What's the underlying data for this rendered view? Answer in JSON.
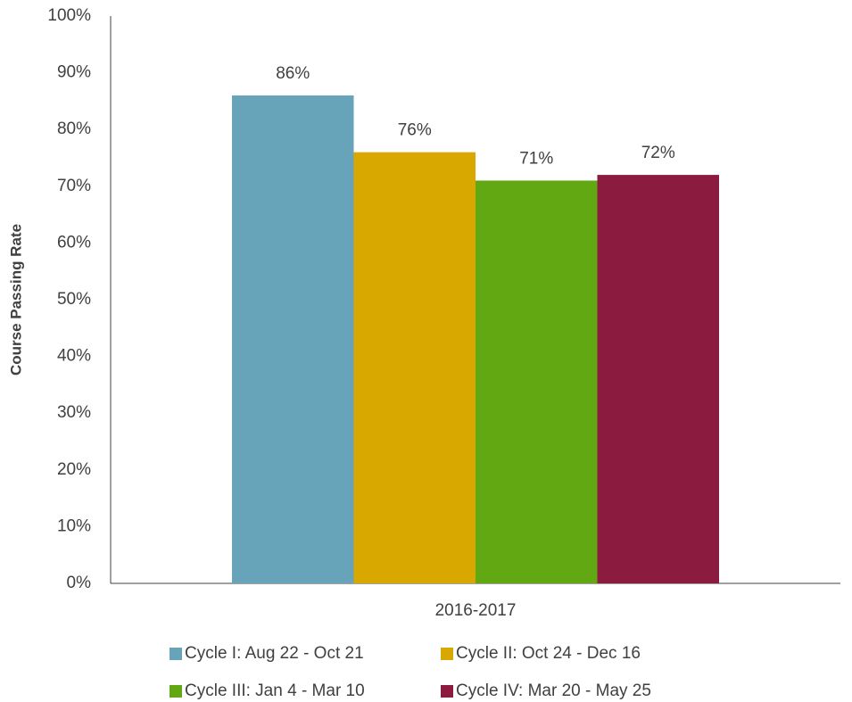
{
  "chart_data": {
    "type": "bar",
    "ylabel": "Course Passing Rate",
    "categories": [
      "2016-2017"
    ],
    "series": [
      {
        "name": "Cycle I: Aug 22 - Oct 21",
        "color": "#67a3b9",
        "values": [
          86
        ],
        "value_labels": [
          "86%"
        ]
      },
      {
        "name": "Cycle II: Oct 24 - Dec 16",
        "color": "#d9a800",
        "values": [
          76
        ],
        "value_labels": [
          "76%"
        ]
      },
      {
        "name": "Cycle III: Jan 4 - Mar 10",
        "color": "#62a813",
        "values": [
          71
        ],
        "value_labels": [
          "71%"
        ]
      },
      {
        "name": "Cycle IV: Mar 20 - May 25",
        "color": "#8b1c40",
        "values": [
          72
        ],
        "value_labels": [
          "72%"
        ]
      }
    ],
    "ylim": [
      0,
      100
    ],
    "yticks": [
      {
        "value": 0,
        "label": "0%"
      },
      {
        "value": 10,
        "label": "10%"
      },
      {
        "value": 20,
        "label": "20%"
      },
      {
        "value": 30,
        "label": "30%"
      },
      {
        "value": 40,
        "label": "40%"
      },
      {
        "value": 50,
        "label": "50%"
      },
      {
        "value": 60,
        "label": "60%"
      },
      {
        "value": 70,
        "label": "70%"
      },
      {
        "value": 80,
        "label": "80%"
      },
      {
        "value": 90,
        "label": "90%"
      },
      {
        "value": 100,
        "label": "100%"
      }
    ],
    "grid": false,
    "legend": "bottom"
  }
}
